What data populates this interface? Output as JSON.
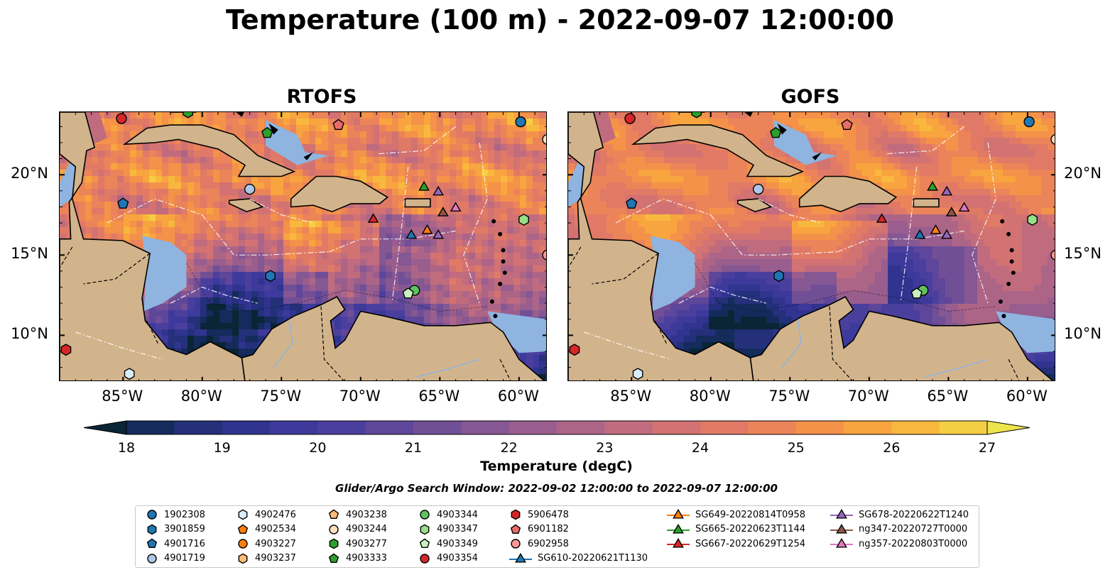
{
  "title": "Temperature (100 m) - 2022-09-07 12:00:00",
  "panels": [
    {
      "name": "RTOFS"
    },
    {
      "name": "GOFS"
    }
  ],
  "lon_ticks": [
    "85°W",
    "80°W",
    "75°W",
    "70°W",
    "65°W",
    "60°W"
  ],
  "lat_ticks": [
    "20°N",
    "15°N",
    "10°N"
  ],
  "colorbar": {
    "label": "Temperature (degC)",
    "ticks": [
      "18",
      "19",
      "20",
      "21",
      "22",
      "23",
      "24",
      "25",
      "26",
      "27"
    ],
    "min": 18,
    "max": 27,
    "step": 0.5,
    "extend": "both"
  },
  "search_window": "Glider/Argo Search Window: 2022-09-02 12:00:00 to 2022-09-07 12:00:00",
  "colors": {
    "land": "#d2b48c",
    "shallow": "#8fb4e0",
    "deep_cold": "#0a2535"
  },
  "legend": [
    {
      "label": "1902308",
      "marker": "circle",
      "color": "#1f77b4"
    },
    {
      "label": "3901859",
      "marker": "hexagon",
      "color": "#1f77b4"
    },
    {
      "label": "4901716",
      "marker": "pentagon",
      "color": "#1f77b4"
    },
    {
      "label": "4901719",
      "marker": "circle",
      "color": "#aec7e8"
    },
    {
      "label": "4902476",
      "marker": "hexagon",
      "color": "#d9ecff"
    },
    {
      "label": "4902534",
      "marker": "pentagon",
      "color": "#ff7f0e"
    },
    {
      "label": "4903227",
      "marker": "circle",
      "color": "#ff7f0e"
    },
    {
      "label": "4903237",
      "marker": "hexagon",
      "color": "#ffbb78"
    },
    {
      "label": "4903238",
      "marker": "pentagon",
      "color": "#ffbb78"
    },
    {
      "label": "4903244",
      "marker": "circle",
      "color": "#ffe0bf"
    },
    {
      "label": "4903277",
      "marker": "hexagon",
      "color": "#2ca02c"
    },
    {
      "label": "4903333",
      "marker": "pentagon",
      "color": "#2ca02c"
    },
    {
      "label": "4903344",
      "marker": "circle",
      "color": "#5fc45f"
    },
    {
      "label": "4903347",
      "marker": "hexagon",
      "color": "#98df8a"
    },
    {
      "label": "4903349",
      "marker": "pentagon",
      "color": "#c9f1c0"
    },
    {
      "label": "4903354",
      "marker": "circle",
      "color": "#d62728"
    },
    {
      "label": "5906478",
      "marker": "hexagon",
      "color": "#d62728"
    },
    {
      "label": "6901182",
      "marker": "pentagon",
      "color": "#e86b6b"
    },
    {
      "label": "6902958",
      "marker": "circle",
      "color": "#ff9896"
    },
    {
      "label": "SG610-20220621T1130",
      "marker": "triangle",
      "color": "#1f77b4"
    },
    {
      "label": "SG649-20220814T0958",
      "marker": "triangle",
      "color": "#ff7f0e"
    },
    {
      "label": "SG665-20220623T1144",
      "marker": "triangle",
      "color": "#2ca02c"
    },
    {
      "label": "SG667-20220629T1254",
      "marker": "triangle",
      "color": "#d62728"
    },
    {
      "label": "SG678-20220622T1240",
      "marker": "triangle",
      "color": "#9467bd"
    },
    {
      "label": "ng347-20220727T0000",
      "marker": "triangle",
      "color": "#8c564b"
    },
    {
      "label": "ng357-20220803T0000",
      "marker": "triangle",
      "color": "#e377c2"
    }
  ],
  "observations": [
    {
      "id": "1902308",
      "lon": -59.9,
      "lat": 23.3
    },
    {
      "id": "3901859",
      "lon": -75.7,
      "lat": 13.7
    },
    {
      "id": "4901716",
      "lon": -85.0,
      "lat": 18.2
    },
    {
      "id": "4901719",
      "lon": -77.0,
      "lat": 19.1
    },
    {
      "id": "4902476",
      "lon": -84.6,
      "lat": 7.6
    },
    {
      "id": "4903244",
      "lon": -58.2,
      "lat": 22.2
    },
    {
      "id": "4903277",
      "lon": -80.9,
      "lat": 23.9
    },
    {
      "id": "4903333",
      "lon": -75.9,
      "lat": 22.6
    },
    {
      "id": "4903344",
      "lon": -66.6,
      "lat": 12.8
    },
    {
      "id": "4903347",
      "lon": -59.7,
      "lat": 17.2
    },
    {
      "id": "4903349",
      "lon": -67.0,
      "lat": 12.6
    },
    {
      "id": "4903354",
      "lon": -85.1,
      "lat": 23.5
    },
    {
      "id": "5906478",
      "lon": -88.6,
      "lat": 9.1
    },
    {
      "id": "6901182",
      "lon": -71.4,
      "lat": 23.1
    },
    {
      "id": "6902958",
      "lon": -58.2,
      "lat": 15.0
    },
    {
      "id": "SG610-20220621T1130",
      "lon": -66.8,
      "lat": 16.3
    },
    {
      "id": "SG649-20220814T0958",
      "lon": -65.8,
      "lat": 16.6
    },
    {
      "id": "SG665-20220623T1144",
      "lon": -66.0,
      "lat": 19.3
    },
    {
      "id": "SG667-20220629T1254",
      "lon": -69.2,
      "lat": 17.3
    },
    {
      "id": "SG678-20220622T1240",
      "lon": -65.1,
      "lat": 19.0
    },
    {
      "id": "SG678-20220622T1240",
      "lon": -65.1,
      "lat": 16.3
    },
    {
      "id": "ng347-20220727T0000",
      "lon": -64.8,
      "lat": 17.7
    },
    {
      "id": "ng357-20220803T0000",
      "lon": -64.0,
      "lat": 18.0
    }
  ]
}
